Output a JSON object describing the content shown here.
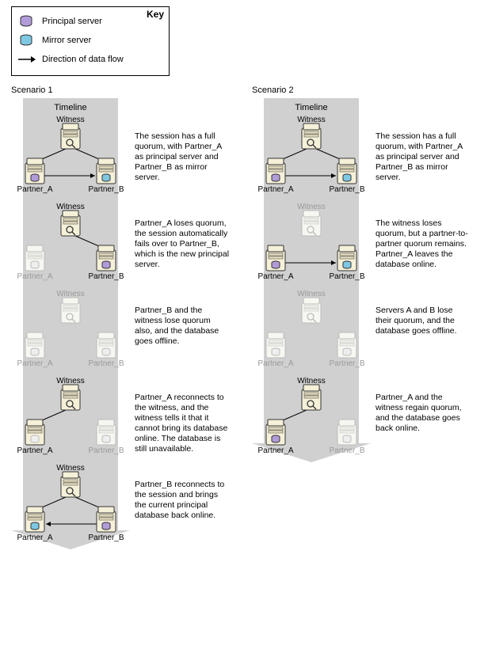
{
  "key": {
    "title": "Key",
    "principal_label": "Principal server",
    "mirror_label": "Mirror server",
    "flow_label": "Direction of data flow"
  },
  "colors": {
    "principal_db": "#b19cd9",
    "mirror_db": "#7ec8e3",
    "server_fill": "#f5f0d8",
    "server_stroke": "#333333",
    "offline_stroke": "#bbbbbb",
    "offline_fill": "#eeeeee",
    "timeline_bg": "#d0d0d0"
  },
  "timeline_label": "Timeline",
  "node_labels": {
    "witness": "Witness",
    "partner_a": "Partner_A",
    "partner_b": "Partner_B"
  },
  "scenarios": [
    {
      "title": "Scenario 1",
      "steps": [
        {
          "desc": "The session has a full quorum, with Partner_A as principal server and Partner_B as mirror server.",
          "witness": "online",
          "a": "principal",
          "b": "mirror",
          "links": {
            "wa": true,
            "wb": true,
            "ab": "a_to_b"
          }
        },
        {
          "desc": "Partner_A loses quorum, the session automatically fails over to Partner_B, which is the new principal server.",
          "witness": "online",
          "a": "offline",
          "b": "principal",
          "links": {
            "wa": false,
            "wb": true,
            "ab": false
          }
        },
        {
          "desc": "Partner_B and the witness lose quorum also, and the database goes offline.",
          "witness": "offline",
          "a": "offline",
          "b": "offline",
          "links": {
            "wa": false,
            "wb": false,
            "ab": false
          }
        },
        {
          "desc": "Partner_A reconnects to the witness, and the witness tells it that it cannot bring its database online. The database is still unavailable.",
          "witness": "online",
          "a": "online-nodb",
          "b": "offline",
          "links": {
            "wa": true,
            "wb": false,
            "ab": false
          }
        },
        {
          "desc": "Partner_B reconnects to the session and brings the current principal database back online.",
          "witness": "online",
          "a": "mirror",
          "b": "principal",
          "links": {
            "wa": true,
            "wb": true,
            "ab": "b_to_a"
          }
        }
      ]
    },
    {
      "title": "Scenario 2",
      "steps": [
        {
          "desc": "The session has a full quorum, with Partner_A as principal server and Partner_B as mirror server.",
          "witness": "online",
          "a": "principal",
          "b": "mirror",
          "links": {
            "wa": true,
            "wb": true,
            "ab": "a_to_b"
          }
        },
        {
          "desc": "The witness loses quorum, but a partner-to-partner quorum remains. Partner_A leaves the database online.",
          "witness": "offline",
          "a": "principal",
          "b": "mirror",
          "links": {
            "wa": false,
            "wb": false,
            "ab": "a_to_b"
          }
        },
        {
          "desc": "Servers A and B lose their quorum, and the database goes offline.",
          "witness": "offline",
          "a": "offline",
          "b": "offline",
          "links": {
            "wa": false,
            "wb": false,
            "ab": false
          }
        },
        {
          "desc": "Partner_A and the witness regain quorum, and the database goes back online.",
          "witness": "online",
          "a": "principal",
          "b": "offline",
          "links": {
            "wa": true,
            "wb": false,
            "ab": false
          }
        }
      ]
    }
  ]
}
